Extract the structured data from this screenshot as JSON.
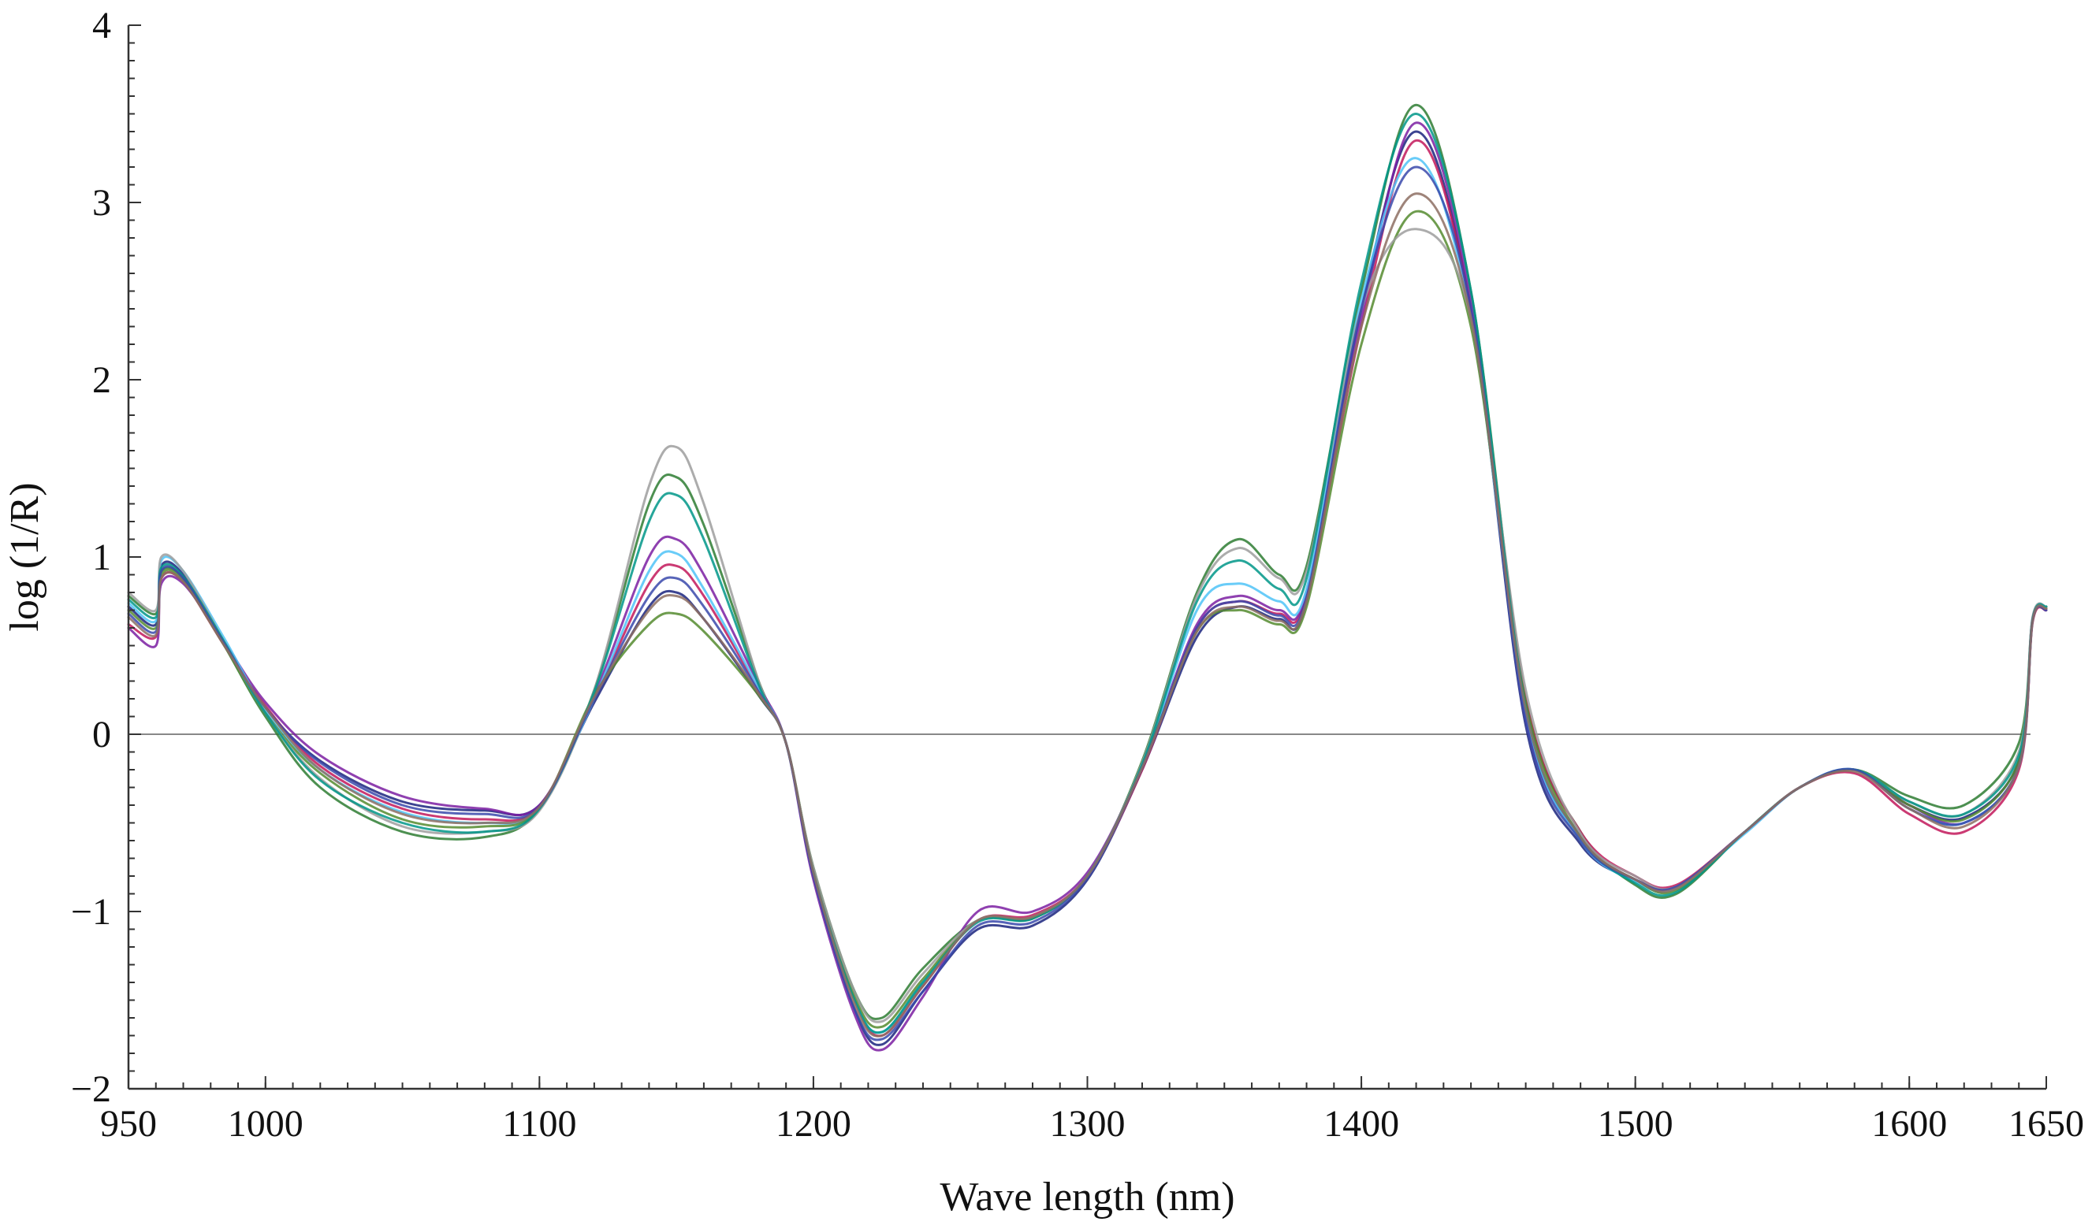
{
  "chart_data": {
    "type": "line",
    "title": "",
    "xlabel": "Wave length (nm)",
    "ylabel": "log (1/R)",
    "xlim": [
      950,
      1650
    ],
    "ylim": [
      -2,
      4
    ],
    "x_ticks": [
      950,
      1000,
      1100,
      1200,
      1300,
      1400,
      1500,
      1600,
      1650
    ],
    "x_tick_labels": [
      "950",
      "1000",
      "1100",
      "1200",
      "1300",
      "1400",
      "1500",
      "1600",
      "1650"
    ],
    "y_ticks": [
      -2,
      -1,
      0,
      1,
      2,
      3,
      4
    ],
    "y_tick_labels": [
      "−2",
      "−1",
      "0",
      "1",
      "2",
      "3",
      "4"
    ],
    "zero_line": true,
    "grid": false,
    "legend": "none",
    "x": [
      950,
      960,
      962,
      970,
      985,
      1000,
      1020,
      1050,
      1080,
      1100,
      1120,
      1140,
      1150,
      1160,
      1180,
      1190,
      1200,
      1215,
      1225,
      1240,
      1260,
      1280,
      1300,
      1320,
      1340,
      1355,
      1370,
      1380,
      1400,
      1420,
      1440,
      1460,
      1480,
      1500,
      1515,
      1540,
      1560,
      1580,
      1600,
      1620,
      1640,
      1645,
      1650
    ],
    "series": [
      {
        "color": "#2e7d32",
        "values": [
          0.78,
          0.68,
          0.92,
          0.88,
          0.5,
          0.1,
          -0.3,
          -0.55,
          -0.58,
          -0.42,
          0.25,
          1.3,
          1.45,
          1.18,
          0.3,
          -0.05,
          -0.75,
          -1.45,
          -1.6,
          -1.32,
          -1.05,
          -1.03,
          -0.8,
          -0.15,
          0.8,
          1.1,
          0.9,
          0.95,
          2.5,
          3.55,
          2.5,
          0.2,
          -0.55,
          -0.85,
          -0.9,
          -0.55,
          -0.3,
          -0.2,
          -0.35,
          -0.4,
          -0.05,
          0.65,
          0.72
        ]
      },
      {
        "color": "#1a237e",
        "values": [
          0.72,
          0.62,
          0.95,
          0.9,
          0.52,
          0.15,
          -0.15,
          -0.38,
          -0.43,
          -0.4,
          0.18,
          0.72,
          0.8,
          0.65,
          0.22,
          -0.05,
          -0.8,
          -1.55,
          -1.75,
          -1.45,
          -1.1,
          -1.08,
          -0.82,
          -0.2,
          0.55,
          0.72,
          0.65,
          0.75,
          2.4,
          3.4,
          2.4,
          0.05,
          -0.62,
          -0.82,
          -0.86,
          -0.55,
          -0.3,
          -0.2,
          -0.4,
          -0.47,
          -0.15,
          0.65,
          0.7
        ]
      },
      {
        "color": "#c2185b",
        "values": [
          0.62,
          0.55,
          0.88,
          0.86,
          0.5,
          0.16,
          -0.18,
          -0.42,
          -0.48,
          -0.41,
          0.2,
          0.85,
          0.95,
          0.78,
          0.25,
          -0.05,
          -0.78,
          -1.5,
          -1.7,
          -1.42,
          -1.05,
          -1.02,
          -0.8,
          -0.2,
          0.6,
          0.75,
          0.68,
          0.78,
          2.3,
          3.35,
          2.4,
          0.2,
          -0.55,
          -0.8,
          -0.85,
          -0.55,
          -0.3,
          -0.22,
          -0.45,
          -0.55,
          -0.2,
          0.63,
          0.7
        ]
      },
      {
        "color": "#7b1fa2",
        "values": [
          0.6,
          0.5,
          0.85,
          0.85,
          0.52,
          0.18,
          -0.12,
          -0.35,
          -0.42,
          -0.4,
          0.22,
          1.0,
          1.1,
          0.9,
          0.28,
          -0.05,
          -0.82,
          -1.58,
          -1.78,
          -1.48,
          -1.0,
          -1.0,
          -0.78,
          -0.18,
          0.62,
          0.78,
          0.7,
          0.8,
          2.35,
          3.45,
          2.45,
          0.1,
          -0.58,
          -0.82,
          -0.86,
          -0.55,
          -0.3,
          -0.2,
          -0.4,
          -0.5,
          -0.18,
          0.64,
          0.71
        ]
      },
      {
        "color": "#4fc3f7",
        "values": [
          0.74,
          0.64,
          0.98,
          0.92,
          0.54,
          0.14,
          -0.2,
          -0.44,
          -0.5,
          -0.42,
          0.2,
          0.92,
          1.02,
          0.82,
          0.26,
          -0.05,
          -0.78,
          -1.5,
          -1.68,
          -1.4,
          -1.05,
          -1.04,
          -0.8,
          -0.18,
          0.7,
          0.85,
          0.75,
          0.82,
          2.45,
          3.25,
          2.35,
          0.12,
          -0.6,
          -0.83,
          -0.87,
          -0.56,
          -0.3,
          -0.2,
          -0.42,
          -0.5,
          -0.18,
          0.65,
          0.72
        ]
      },
      {
        "color": "#558b2f",
        "values": [
          0.7,
          0.6,
          0.9,
          0.87,
          0.5,
          0.12,
          -0.22,
          -0.48,
          -0.52,
          -0.42,
          0.22,
          0.62,
          0.68,
          0.58,
          0.22,
          -0.05,
          -0.76,
          -1.48,
          -1.65,
          -1.38,
          -1.05,
          -1.04,
          -0.8,
          -0.18,
          0.58,
          0.7,
          0.62,
          0.72,
          2.2,
          2.95,
          2.3,
          0.18,
          -0.58,
          -0.82,
          -0.88,
          -0.55,
          -0.3,
          -0.2,
          -0.4,
          -0.48,
          -0.15,
          0.64,
          0.71
        ]
      },
      {
        "color": "#9e9e9e",
        "values": [
          0.8,
          0.7,
          1.0,
          0.92,
          0.52,
          0.12,
          -0.25,
          -0.52,
          -0.55,
          -0.43,
          0.25,
          1.4,
          1.62,
          1.3,
          0.3,
          -0.05,
          -0.75,
          -1.45,
          -1.62,
          -1.35,
          -1.05,
          -1.03,
          -0.8,
          -0.16,
          0.78,
          1.05,
          0.88,
          0.92,
          2.4,
          2.85,
          2.35,
          0.25,
          -0.56,
          -0.8,
          -0.86,
          -0.55,
          -0.3,
          -0.2,
          -0.38,
          -0.45,
          -0.1,
          0.66,
          0.72
        ]
      },
      {
        "color": "#009688",
        "values": [
          0.76,
          0.66,
          0.94,
          0.89,
          0.52,
          0.12,
          -0.26,
          -0.5,
          -0.55,
          -0.42,
          0.24,
          1.2,
          1.35,
          1.1,
          0.28,
          -0.05,
          -0.78,
          -1.5,
          -1.68,
          -1.4,
          -1.06,
          -1.04,
          -0.8,
          -0.17,
          0.75,
          0.98,
          0.82,
          0.88,
          2.55,
          3.5,
          2.5,
          0.15,
          -0.58,
          -0.84,
          -0.89,
          -0.55,
          -0.3,
          -0.2,
          -0.38,
          -0.45,
          -0.12,
          0.65,
          0.72
        ]
      },
      {
        "color": "#3949ab",
        "values": [
          0.68,
          0.58,
          0.92,
          0.88,
          0.51,
          0.15,
          -0.16,
          -0.4,
          -0.45,
          -0.41,
          0.2,
          0.78,
          0.88,
          0.72,
          0.24,
          -0.05,
          -0.8,
          -1.55,
          -1.72,
          -1.45,
          -1.08,
          -1.06,
          -0.81,
          -0.19,
          0.6,
          0.75,
          0.67,
          0.77,
          2.4,
          3.2,
          2.4,
          0.08,
          -0.6,
          -0.82,
          -0.86,
          -0.55,
          -0.3,
          -0.2,
          -0.42,
          -0.5,
          -0.18,
          0.64,
          0.7
        ]
      },
      {
        "color": "#8d6e63",
        "values": [
          0.66,
          0.56,
          0.88,
          0.86,
          0.5,
          0.15,
          -0.2,
          -0.45,
          -0.5,
          -0.41,
          0.21,
          0.7,
          0.78,
          0.65,
          0.23,
          -0.05,
          -0.78,
          -1.52,
          -1.7,
          -1.42,
          -1.05,
          -1.03,
          -0.8,
          -0.19,
          0.58,
          0.72,
          0.64,
          0.75,
          2.3,
          3.05,
          2.35,
          0.14,
          -0.58,
          -0.82,
          -0.87,
          -0.55,
          -0.3,
          -0.21,
          -0.42,
          -0.52,
          -0.18,
          0.64,
          0.71
        ]
      }
    ]
  }
}
